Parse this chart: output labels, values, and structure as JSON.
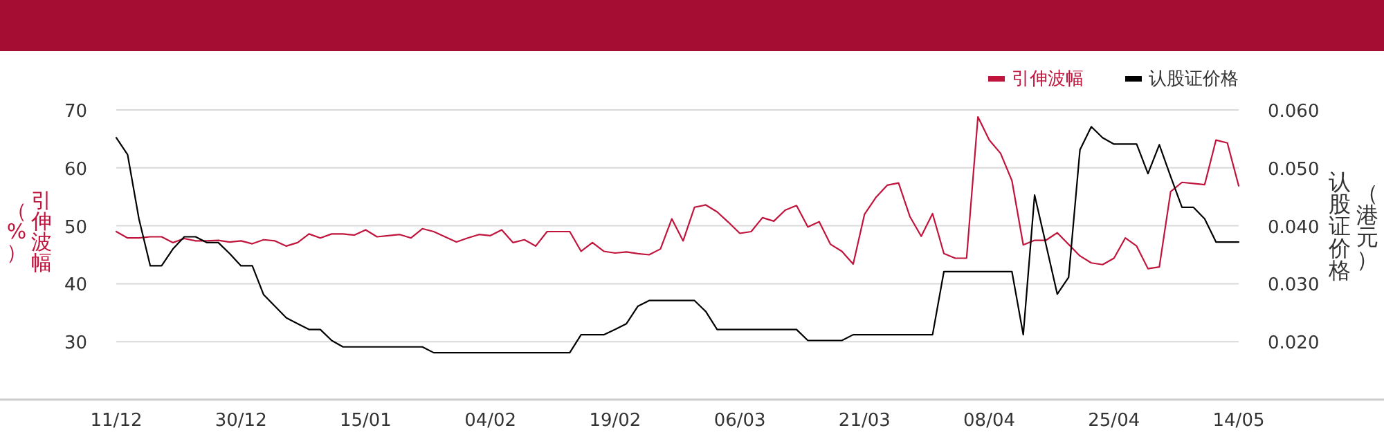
{
  "chart_data": {
    "type": "line",
    "ylabel": "引伸波幅（%）",
    "y2label": "认股证价格（港元）",
    "categories": [
      "11/12",
      null,
      null,
      null,
      null,
      null,
      null,
      null,
      null,
      null,
      null,
      "30/12",
      null,
      null,
      null,
      null,
      null,
      null,
      null,
      null,
      null,
      null,
      "15/01",
      null,
      null,
      null,
      null,
      null,
      null,
      null,
      null,
      null,
      null,
      "04/02",
      null,
      null,
      null,
      null,
      null,
      null,
      null,
      null,
      null,
      null,
      "19/02",
      null,
      null,
      null,
      null,
      null,
      null,
      null,
      null,
      null,
      null,
      "06/03",
      null,
      null,
      null,
      null,
      null,
      null,
      null,
      null,
      null,
      null,
      "21/03",
      null,
      null,
      null,
      null,
      null,
      null,
      null,
      null,
      null,
      null,
      "08/04",
      null,
      null,
      null,
      null,
      null,
      null,
      null,
      null,
      null,
      null,
      "25/04",
      null,
      null,
      null,
      null,
      null,
      null,
      null,
      null,
      null,
      null,
      "14/05"
    ],
    "series": [
      {
        "name": "引伸波幅",
        "color": "#c0143c",
        "values": [
          49.0,
          47.9,
          47.9,
          48.1,
          48.1,
          47.1,
          47.8,
          47.4,
          47.4,
          47.5,
          47.2,
          47.4,
          46.9,
          47.6,
          47.4,
          46.5,
          47.1,
          48.6,
          47.9,
          48.6,
          48.6,
          48.4,
          49.3,
          48.1,
          48.3,
          48.5,
          47.9,
          49.5,
          49.0,
          48.1,
          47.2,
          47.9,
          48.5,
          48.3,
          49.3,
          47.1,
          47.6,
          46.5,
          49.0,
          49.0,
          49.0,
          45.6,
          47.1,
          45.6,
          45.3,
          45.5,
          45.2,
          45.0,
          46.0,
          51.2,
          47.4,
          53.2,
          53.6,
          52.4,
          50.6,
          48.7,
          49.0,
          51.4,
          50.8,
          52.7,
          53.5,
          49.8,
          50.7,
          46.8,
          45.6,
          43.4,
          52.0,
          54.9,
          57.0,
          57.4,
          51.6,
          48.2,
          52.1,
          45.2,
          44.4,
          44.4,
          68.8,
          64.8,
          62.5,
          57.8,
          46.7,
          47.5,
          47.5,
          48.8,
          46.8,
          44.8,
          43.6,
          43.3,
          44.4,
          47.9,
          46.5,
          42.6,
          42.9,
          55.9,
          57.5,
          57.3,
          57.1,
          64.8,
          64.3,
          56.9
        ]
      },
      {
        "name": "认股证价格",
        "color": "#000000",
        "axis": "y2",
        "values": [
          0.0552,
          0.0523,
          0.0412,
          0.0331,
          0.0331,
          0.036,
          0.0381,
          0.0381,
          0.0371,
          0.0371,
          0.0352,
          0.0331,
          0.0331,
          0.0281,
          0.0261,
          0.0241,
          0.0231,
          0.0221,
          0.0221,
          0.0202,
          0.0191,
          0.0191,
          0.0191,
          0.0191,
          0.0191,
          0.0191,
          0.0191,
          0.0191,
          0.0181,
          0.0181,
          0.0181,
          0.0181,
          0.0181,
          0.0181,
          0.0181,
          0.0181,
          0.0181,
          0.0181,
          0.0181,
          0.0181,
          0.0181,
          0.0212,
          0.0212,
          0.0212,
          0.0221,
          0.0231,
          0.0261,
          0.0271,
          0.0271,
          0.0271,
          0.0271,
          0.0271,
          0.0252,
          0.0221,
          0.0221,
          0.0221,
          0.0221,
          0.0221,
          0.0221,
          0.0221,
          0.0221,
          0.0202,
          0.0202,
          0.0202,
          0.0202,
          0.0212,
          0.0212,
          0.0212,
          0.0212,
          0.0212,
          0.0212,
          0.0212,
          0.0212,
          0.0321,
          0.0321,
          0.0321,
          0.0321,
          0.0321,
          0.0321,
          0.0321,
          0.0212,
          0.0453,
          0.0368,
          0.0282,
          0.0311,
          0.0531,
          0.0571,
          0.0552,
          0.0541,
          0.0541,
          0.0541,
          0.049,
          0.054,
          0.0485,
          0.0432,
          0.0432,
          0.0412,
          0.0372,
          0.0372,
          0.0372
        ]
      }
    ],
    "ylim": [
      20,
      70
    ],
    "yticks": [
      30,
      40,
      50,
      60,
      70
    ],
    "y2lim": [
      0.01,
      0.06
    ],
    "y2ticks": [
      {
        "value": 0.02,
        "label": "0.020"
      },
      {
        "value": 0.03,
        "label": "0.030"
      },
      {
        "value": 0.04,
        "label": "0.040"
      },
      {
        "value": 0.05,
        "label": "0.050"
      },
      {
        "value": 0.06,
        "label": "0.060"
      }
    ],
    "grid": "y",
    "legend": "top right"
  }
}
